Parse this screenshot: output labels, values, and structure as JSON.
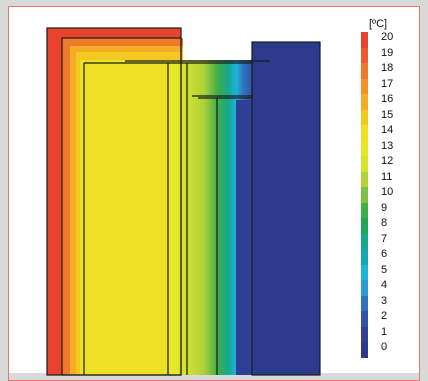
{
  "legend": {
    "unit": "[ºC]",
    "entries": [
      {
        "label": "20",
        "color": "#e8432f"
      },
      {
        "label": "19",
        "color": "#ec5a2e"
      },
      {
        "label": "18",
        "color": "#f07a2c"
      },
      {
        "label": "17",
        "color": "#f3922a"
      },
      {
        "label": "16",
        "color": "#f5ad28"
      },
      {
        "label": "15",
        "color": "#f3c820"
      },
      {
        "label": "14",
        "color": "#eee024"
      },
      {
        "label": "13",
        "color": "#e7e82a"
      },
      {
        "label": "12",
        "color": "#d6e52c"
      },
      {
        "label": "11",
        "color": "#b0d33a"
      },
      {
        "label": "10",
        "color": "#7cc142"
      },
      {
        "label": "9",
        "color": "#3fae49"
      },
      {
        "label": "8",
        "color": "#1da55a"
      },
      {
        "label": "7",
        "color": "#17a88c"
      },
      {
        "label": "6",
        "color": "#16a7b4"
      },
      {
        "label": "5",
        "color": "#1fb3d9"
      },
      {
        "label": "4",
        "color": "#2c9ad3"
      },
      {
        "label": "3",
        "color": "#2f73bf"
      },
      {
        "label": "2",
        "color": "#3152a8"
      },
      {
        "label": "1",
        "color": "#2f3f95"
      },
      {
        "label": "0",
        "color": "#2b3a8a"
      }
    ]
  },
  "colors": {
    "frame": "#d9d9d9",
    "outline": "#1a1a1a",
    "hot": "#e8432f",
    "interior": "#eee024",
    "exterior": "#2b3a8a"
  }
}
